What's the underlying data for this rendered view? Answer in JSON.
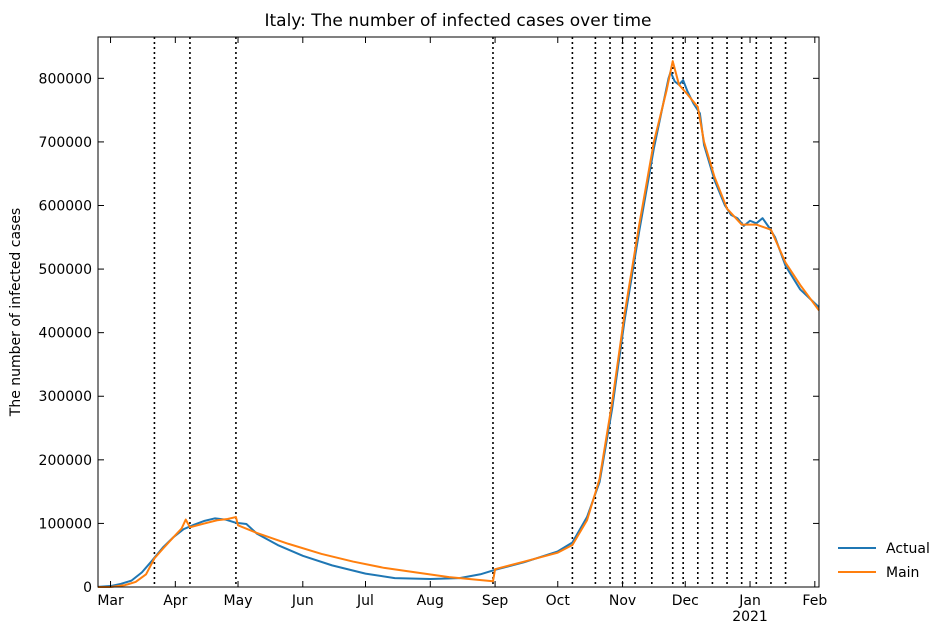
{
  "chart_data": {
    "type": "line",
    "title": "Italy: The number of infected cases over time",
    "xlabel": "",
    "ylabel": "The number of infected cases",
    "x_axis_type": "date",
    "xlim": [
      "2020-02-24",
      "2021-02-03"
    ],
    "ylim": [
      0,
      865000
    ],
    "y_ticks": [
      0,
      100000,
      200000,
      300000,
      400000,
      500000,
      600000,
      700000,
      800000
    ],
    "x_ticks": [
      {
        "date": "2020-03-01",
        "label": "Mar"
      },
      {
        "date": "2020-04-01",
        "label": "Apr"
      },
      {
        "date": "2020-05-01",
        "label": "May"
      },
      {
        "date": "2020-06-01",
        "label": "Jun"
      },
      {
        "date": "2020-07-01",
        "label": "Jul"
      },
      {
        "date": "2020-08-01",
        "label": "Aug"
      },
      {
        "date": "2020-09-01",
        "label": "Sep"
      },
      {
        "date": "2020-10-01",
        "label": "Oct"
      },
      {
        "date": "2020-11-01",
        "label": "Nov"
      },
      {
        "date": "2020-12-01",
        "label": "Dec"
      },
      {
        "date": "2021-01-01",
        "label": "Jan"
      },
      {
        "date": "2021-02-01",
        "label": "Feb"
      }
    ],
    "year_label": {
      "date": "2021-01-01",
      "label": "2021"
    },
    "change_dates": [
      "2020-03-22",
      "2020-04-08",
      "2020-04-30",
      "2020-08-31",
      "2020-10-08",
      "2020-10-19",
      "2020-10-26",
      "2020-11-01",
      "2020-11-07",
      "2020-11-15",
      "2020-11-25",
      "2020-11-30",
      "2020-12-07",
      "2020-12-14",
      "2020-12-21",
      "2020-12-28",
      "2021-01-04",
      "2021-01-11",
      "2021-01-18"
    ],
    "grid": false,
    "legend_position": "outside-right-bottom",
    "series": [
      {
        "name": "Actual",
        "color": "#1f77b4",
        "points": [
          [
            "2020-02-24",
            200
          ],
          [
            "2020-03-01",
            1500
          ],
          [
            "2020-03-06",
            5000
          ],
          [
            "2020-03-11",
            10000
          ],
          [
            "2020-03-16",
            23000
          ],
          [
            "2020-03-21",
            42000
          ],
          [
            "2020-03-26",
            62000
          ],
          [
            "2020-03-31",
            78000
          ],
          [
            "2020-04-05",
            91000
          ],
          [
            "2020-04-10",
            98000
          ],
          [
            "2020-04-15",
            104000
          ],
          [
            "2020-04-20",
            108000
          ],
          [
            "2020-04-25",
            106000
          ],
          [
            "2020-04-30",
            101000
          ],
          [
            "2020-05-05",
            99000
          ],
          [
            "2020-05-10",
            84000
          ],
          [
            "2020-05-20",
            66000
          ],
          [
            "2020-06-01",
            49000
          ],
          [
            "2020-06-15",
            34000
          ],
          [
            "2020-07-01",
            21000
          ],
          [
            "2020-07-15",
            14000
          ],
          [
            "2020-08-01",
            12500
          ],
          [
            "2020-08-15",
            14000
          ],
          [
            "2020-08-25",
            20000
          ],
          [
            "2020-09-01",
            27000
          ],
          [
            "2020-09-15",
            39000
          ],
          [
            "2020-10-01",
            56000
          ],
          [
            "2020-10-08",
            70000
          ],
          [
            "2020-10-15",
            110000
          ],
          [
            "2020-10-21",
            165000
          ],
          [
            "2020-10-27",
            280000
          ],
          [
            "2020-11-02",
            420000
          ],
          [
            "2020-11-09",
            560000
          ],
          [
            "2020-11-16",
            690000
          ],
          [
            "2020-11-23",
            800000
          ],
          [
            "2020-11-24",
            810000
          ],
          [
            "2020-11-26",
            795000
          ],
          [
            "2020-11-28",
            790000
          ],
          [
            "2020-11-30",
            797000
          ],
          [
            "2020-12-02",
            780000
          ],
          [
            "2020-12-05",
            760000
          ],
          [
            "2020-12-08",
            745000
          ],
          [
            "2020-12-10",
            695000
          ],
          [
            "2020-12-15",
            640000
          ],
          [
            "2020-12-20",
            600000
          ],
          [
            "2020-12-23",
            585000
          ],
          [
            "2020-12-26",
            580000
          ],
          [
            "2020-12-29",
            568000
          ],
          [
            "2021-01-01",
            576000
          ],
          [
            "2021-01-04",
            572000
          ],
          [
            "2021-01-07",
            580000
          ],
          [
            "2021-01-10",
            566000
          ],
          [
            "2021-01-13",
            550000
          ],
          [
            "2021-01-18",
            505000
          ],
          [
            "2021-01-25",
            468000
          ],
          [
            "2021-02-03",
            440000
          ]
        ]
      },
      {
        "name": "Main",
        "color": "#ff7f0e",
        "points": [
          [
            "2020-02-24",
            0
          ],
          [
            "2020-03-01",
            0
          ],
          [
            "2020-03-08",
            3000
          ],
          [
            "2020-03-13",
            8000
          ],
          [
            "2020-03-18",
            20000
          ],
          [
            "2020-03-22",
            45000
          ],
          [
            "2020-03-26",
            60000
          ],
          [
            "2020-03-31",
            78000
          ],
          [
            "2020-04-04",
            92000
          ],
          [
            "2020-04-06",
            106000
          ],
          [
            "2020-04-08",
            94000
          ],
          [
            "2020-04-15",
            100000
          ],
          [
            "2020-04-21",
            105000
          ],
          [
            "2020-04-26",
            107000
          ],
          [
            "2020-04-30",
            110000
          ],
          [
            "2020-05-01",
            97000
          ],
          [
            "2020-05-10",
            85000
          ],
          [
            "2020-05-25",
            68000
          ],
          [
            "2020-06-10",
            52000
          ],
          [
            "2020-06-25",
            40000
          ],
          [
            "2020-07-10",
            30000
          ],
          [
            "2020-07-25",
            23000
          ],
          [
            "2020-08-10",
            15500
          ],
          [
            "2020-08-31",
            9000
          ],
          [
            "2020-09-01",
            28000
          ],
          [
            "2020-09-15",
            40000
          ],
          [
            "2020-10-01",
            54000
          ],
          [
            "2020-10-08",
            66000
          ],
          [
            "2020-10-15",
            105000
          ],
          [
            "2020-10-21",
            170000
          ],
          [
            "2020-10-27",
            290000
          ],
          [
            "2020-11-02",
            430000
          ],
          [
            "2020-11-09",
            570000
          ],
          [
            "2020-11-16",
            700000
          ],
          [
            "2020-11-22",
            780000
          ],
          [
            "2020-11-25",
            827000
          ],
          [
            "2020-11-28",
            790000
          ],
          [
            "2020-12-02",
            775000
          ],
          [
            "2020-12-07",
            755000
          ],
          [
            "2020-12-10",
            700000
          ],
          [
            "2020-12-15",
            645000
          ],
          [
            "2020-12-21",
            595000
          ],
          [
            "2020-12-28",
            570000
          ],
          [
            "2021-01-04",
            570000
          ],
          [
            "2021-01-11",
            562000
          ],
          [
            "2021-01-18",
            510000
          ],
          [
            "2021-01-25",
            475000
          ],
          [
            "2021-02-03",
            435000
          ]
        ]
      }
    ]
  }
}
